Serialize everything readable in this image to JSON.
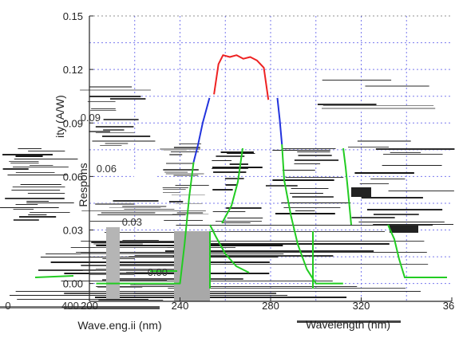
{
  "chart_data": {
    "type": "line",
    "xlabel": "Wavelength (nm)",
    "ylabel": "Responsivity (A/W)",
    "xlim": [
      200,
      360
    ],
    "ylim": [
      -0.01,
      0.15
    ],
    "grid": true,
    "x_ticks": [
      "200",
      "240",
      "280",
      "320",
      "36"
    ],
    "y_ticks": [
      "0.15",
      "0.12",
      "0.09",
      "0.06",
      "0.03",
      "0.00"
    ],
    "distorted_labels": {
      "ylabel_fragment": "ity (A/W)",
      "ylabel_lower": "Respons",
      "inset_ticks": [
        "0.09",
        "0.06",
        "0.03",
        "0.00"
      ],
      "left_axis_ticks": [
        "0",
        "400"
      ],
      "xlabel_left": "Wave.eng.ii (nm)",
      "xlabel_right": "Wavelength (nm)"
    },
    "series": [
      {
        "color": "#ee2222",
        "x": [
          255,
          257,
          259,
          262,
          265,
          268,
          271,
          274,
          277,
          279
        ],
        "y": [
          0.106,
          0.123,
          0.128,
          0.127,
          0.128,
          0.126,
          0.127,
          0.125,
          0.121,
          0.103
        ]
      },
      {
        "color": "#2233dd",
        "x": [
          246,
          248,
          250,
          253
        ],
        "y": [
          0.068,
          0.078,
          0.09,
          0.104
        ]
      },
      {
        "color": "#2233dd",
        "x": [
          283,
          284,
          285
        ],
        "y": [
          0.104,
          0.092,
          0.078
        ]
      },
      {
        "color": "#22cc22",
        "x": [
          203,
          225,
          240,
          242,
          244,
          246
        ],
        "y": [
          0.0,
          0.0,
          0.0,
          0.022,
          0.048,
          0.068
        ]
      },
      {
        "color": "#22cc22",
        "x": [
          285,
          286,
          289,
          292,
          296,
          300,
          312
        ],
        "y": [
          0.078,
          0.058,
          0.038,
          0.022,
          0.008,
          0.0,
          0.0
        ]
      }
    ]
  },
  "colors": {
    "grid": "#7a7aee",
    "axis": "#222222",
    "background": "#ffffff"
  }
}
